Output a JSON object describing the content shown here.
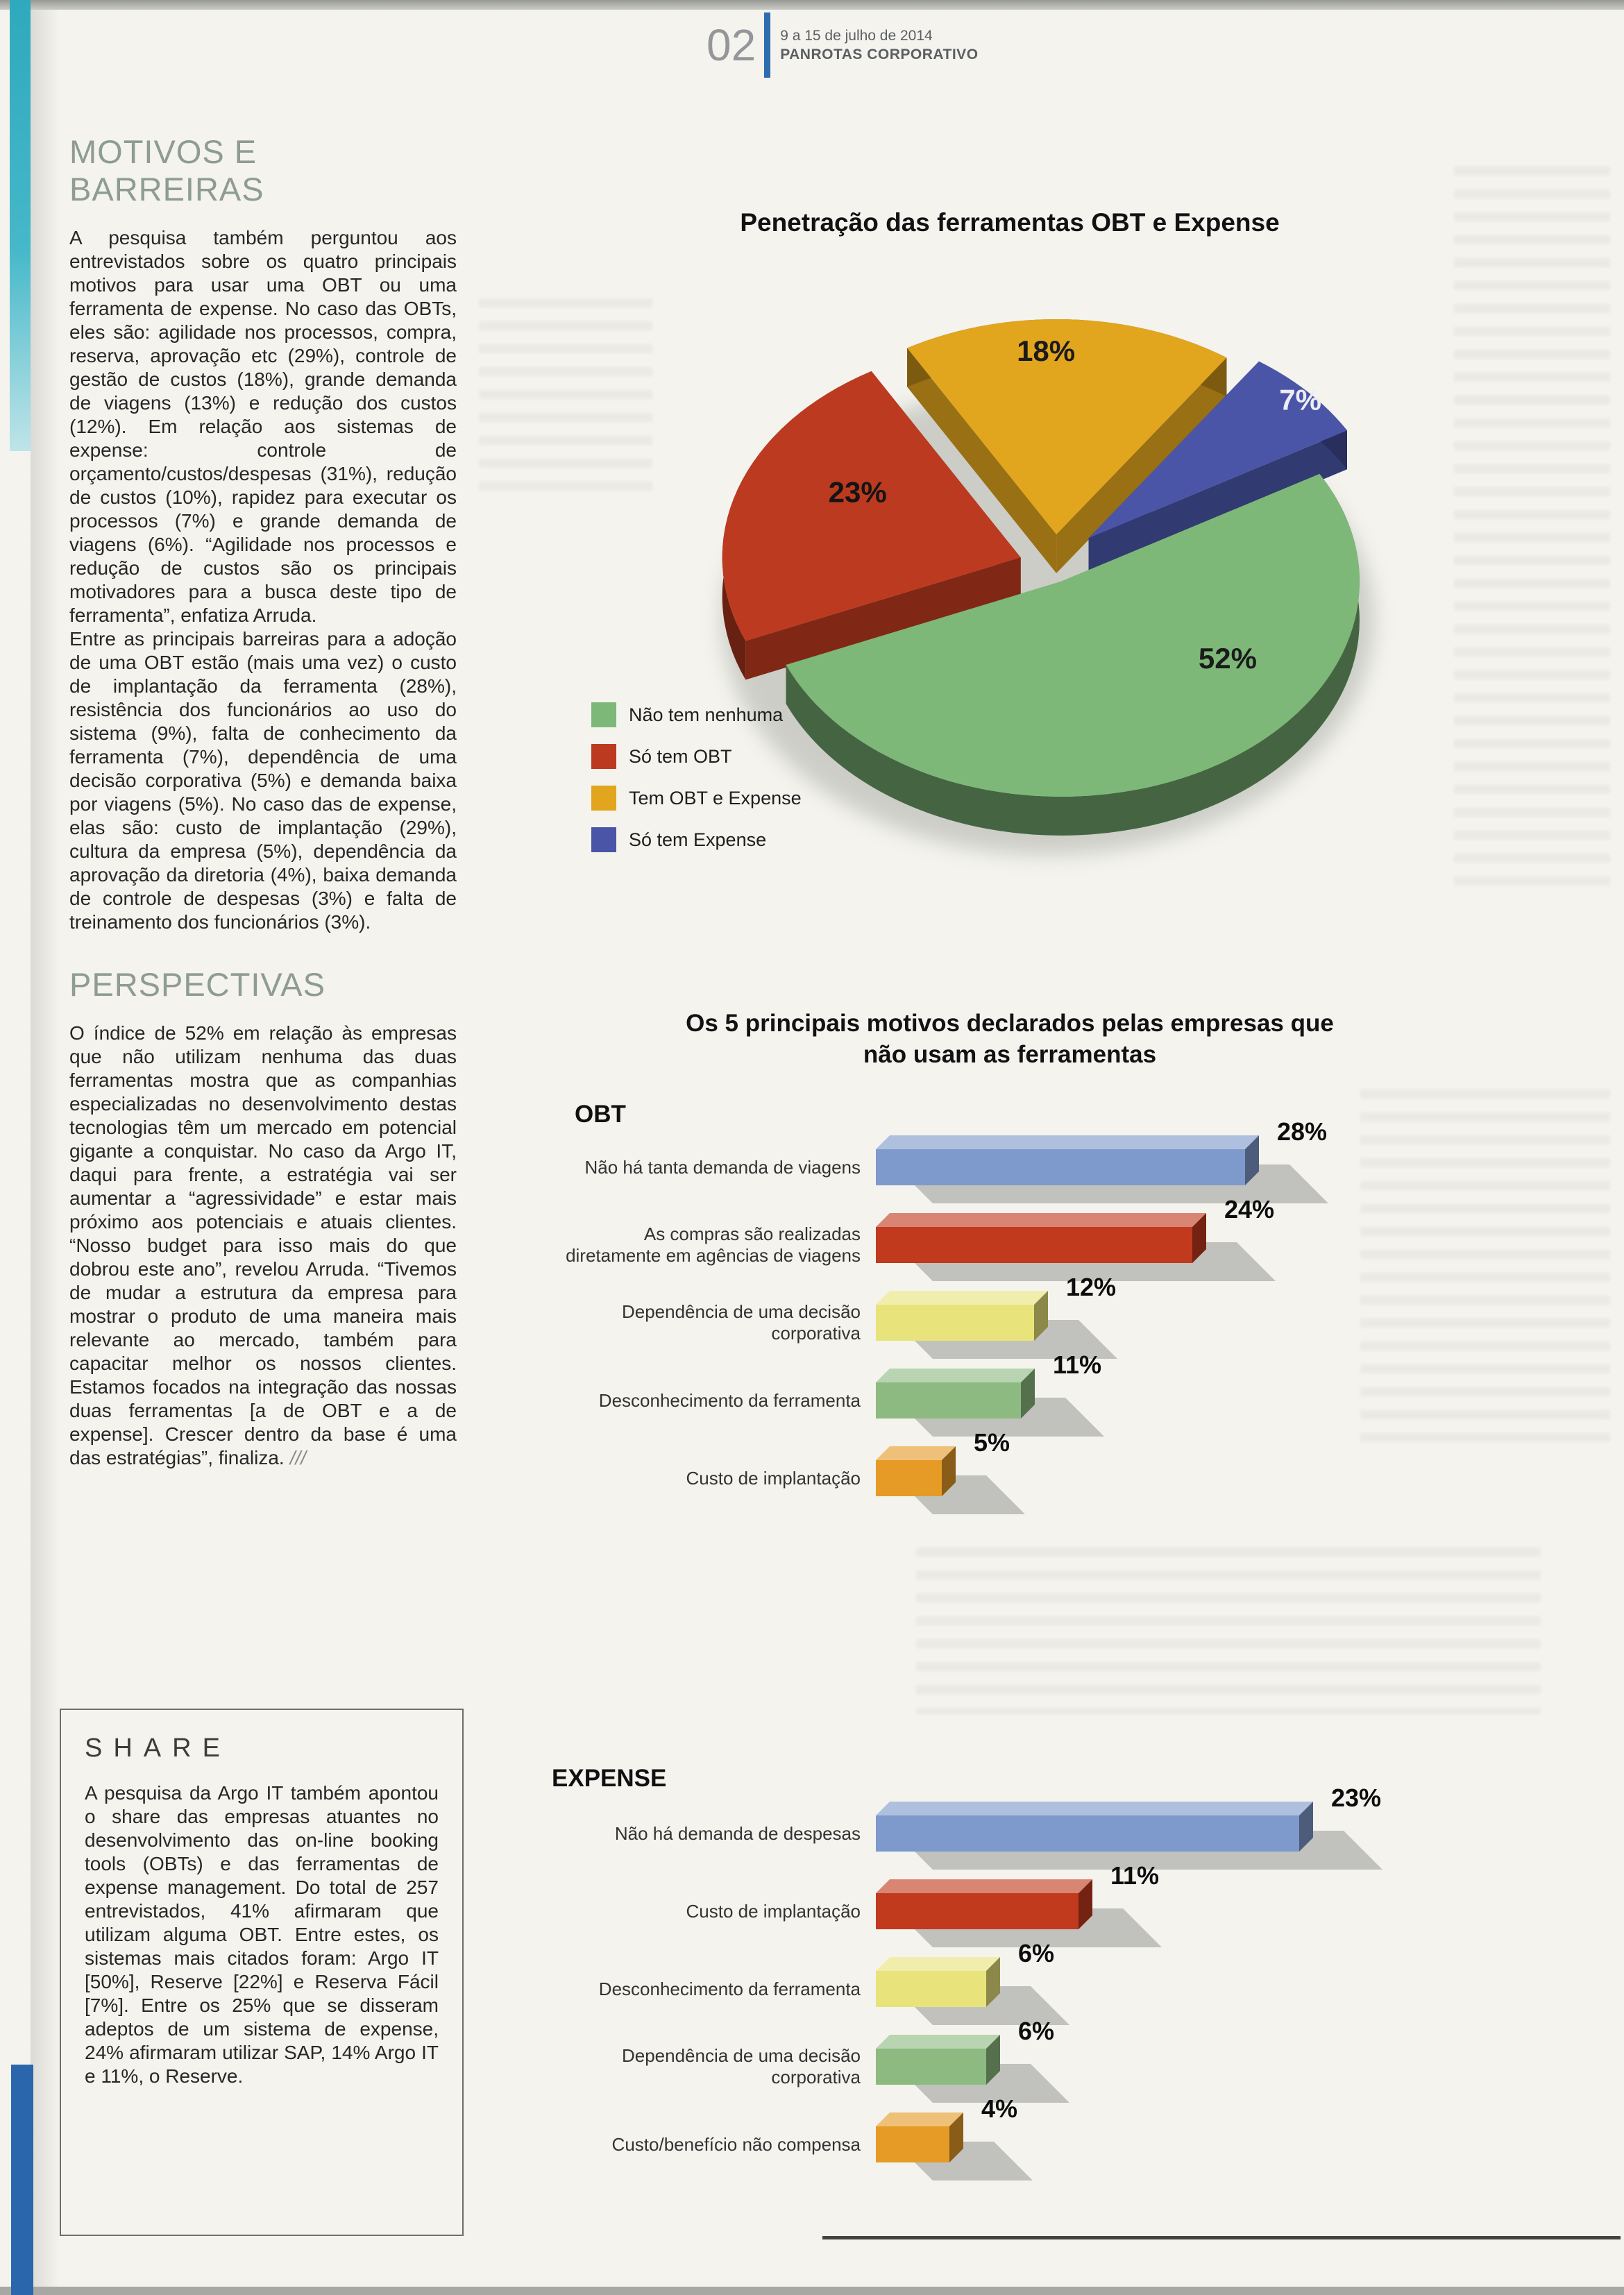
{
  "scan": {
    "header": {
      "page_number": "02",
      "date_line": "9 a 15 de julho de 2014",
      "publication": "PANROTAS CORPORATIVO"
    }
  },
  "article": {
    "section1": {
      "title": "MOTIVOS E BARREIRAS",
      "paragraphs": [
        "A pesquisa também perguntou aos entrevistados sobre os quatro principais motivos para usar uma OBT ou uma ferramenta de expense. No caso das OBTs, eles são: agilidade nos processos, compra, reserva, aprovação etc (29%), controle de gestão de custos (18%), grande demanda de viagens (13%) e redução dos custos (12%). Em relação aos sistemas de expense: controle de orçamento/custos/despesas (31%), redução de custos (10%), rapidez para executar os processos (7%) e grande demanda de viagens (6%). “Agilidade nos processos e redução de custos são os principais motivadores para a busca deste tipo de ferramenta”, enfatiza Arruda.",
        "Entre as principais barreiras para a adoção de uma OBT estão (mais uma vez) o custo de implantação da ferramenta (28%), resistência dos funcionários ao uso do sistema (9%), falta de conhecimento da ferramenta (7%), dependência de uma decisão corporativa (5%) e demanda baixa por viagens (5%). No caso das de expense, elas são: custo de implantação (29%), cultura da empresa (5%), dependência da aprovação da diretoria (4%), baixa demanda de controle de despesas (3%) e falta de treinamento dos funcionários (3%)."
      ]
    },
    "section2": {
      "title": "PERSPECTIVAS",
      "paragraphs": [
        "O índice de 52% em relação às empresas que não utilizam nenhuma das duas ferramentas mostra que as companhias especializadas no desenvolvimento destas tecnologias têm um mercado em potencial gigante a conquistar. No caso da Argo IT, daqui para frente, a estratégia vai ser aumentar a “agressividade” e estar mais próximo aos potenciais e atuais clientes. “Nosso budget para isso mais do que dobrou este ano”, revelou Arruda. “Tivemos de mudar a estrutura da empresa para mostrar o produto de uma maneira mais relevante ao mercado, também para capacitar melhor os nossos clientes. Estamos focados na integração das nossas duas ferramentas [a de OBT e a de expense]. Crescer dentro da base é uma das estratégias”, finaliza."
      ],
      "end_mark": "///"
    },
    "share_box": {
      "title": "SHARE",
      "body": "A pesquisa da Argo IT também apontou o share das empresas atuantes no desenvolvimento das on-line booking tools (OBTs) e das ferramentas de expense management. Do total de 257 entrevistados, 41% afirmaram que utilizam alguma OBT. Entre estes, os sistemas mais citados foram: Argo IT [50%], Reserve [22%] e Reserva Fácil [7%]. Entre os 25% que se disseram adeptos de um sistema de expense, 24% afirmaram utilizar SAP, 14% Argo IT e 11%, o Reserve."
    }
  },
  "chart_data": [
    {
      "type": "pie",
      "title": "Penetração das ferramentas OBT e Expense",
      "labels": [
        "Não tem nenhuma",
        "Só tem OBT",
        "Tem OBT e Expense",
        "Só tem Expense"
      ],
      "values": [
        52,
        23,
        18,
        7
      ],
      "colors": [
        "#7db878",
        "#bc3a1f",
        "#e2a51e",
        "#4a55a8"
      ],
      "value_suffix": "%",
      "legend_position": "bottom-left",
      "style": "3d-exploded"
    },
    {
      "type": "bar",
      "group": "OBT",
      "title": "Os 5 principais motivos declarados pelas empresas que não usam as ferramentas",
      "orientation": "horizontal",
      "categories": [
        "Não há tanta demanda de viagens",
        "As compras são realizadas diretamente em agências de viagens",
        "Dependência de uma decisão corporativa",
        "Desconhecimento da ferramenta",
        "Custo de implantação"
      ],
      "values": [
        28,
        24,
        12,
        11,
        5
      ],
      "colors": [
        "#7e99cb",
        "#c23a1e",
        "#e9e37b",
        "#8cba80",
        "#e59b26"
      ],
      "value_suffix": "%"
    },
    {
      "type": "bar",
      "group": "EXPENSE",
      "orientation": "horizontal",
      "categories": [
        "Não há demanda de despesas",
        "Custo de implantação",
        "Desconhecimento da ferramenta",
        "Dependência de uma decisão corporativa",
        "Custo/benefício não compensa"
      ],
      "values": [
        23,
        11,
        6,
        6,
        4
      ],
      "colors": [
        "#7e99cb",
        "#c23a1e",
        "#e9e37b",
        "#8cba80",
        "#e59b26"
      ],
      "value_suffix": "%"
    }
  ]
}
